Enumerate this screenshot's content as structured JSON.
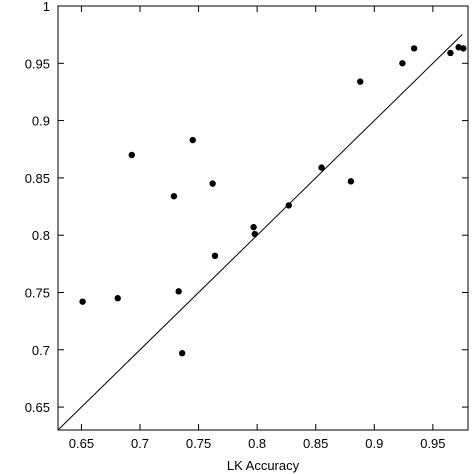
{
  "chart_data": {
    "type": "scatter",
    "title": "",
    "xlabel": "LK Accuracy",
    "ylabel": "",
    "xlim": [
      0.63,
      0.98
    ],
    "ylim": [
      0.63,
      1.0
    ],
    "x_ticks": [
      0.65,
      0.7,
      0.75,
      0.8,
      0.85,
      0.9,
      0.95
    ],
    "x_tick_labels": [
      "0.65",
      "0.7",
      "0.75",
      "0.8",
      "0.85",
      "0.9",
      "0.95"
    ],
    "y_ticks": [
      0.65,
      0.7,
      0.75,
      0.8,
      0.85,
      0.9,
      0.95,
      1.0
    ],
    "y_tick_labels": [
      "0.65",
      "0.7",
      "0.75",
      "0.8",
      "0.85",
      "0.9",
      "0.95",
      "1"
    ],
    "grid": false,
    "reference_line": {
      "from": [
        0.63,
        0.63
      ],
      "to": [
        0.975,
        0.975
      ]
    },
    "points": [
      {
        "x": 0.651,
        "y": 0.742
      },
      {
        "x": 0.681,
        "y": 0.745
      },
      {
        "x": 0.693,
        "y": 0.87
      },
      {
        "x": 0.729,
        "y": 0.834
      },
      {
        "x": 0.733,
        "y": 0.751
      },
      {
        "x": 0.736,
        "y": 0.697
      },
      {
        "x": 0.745,
        "y": 0.883
      },
      {
        "x": 0.762,
        "y": 0.845
      },
      {
        "x": 0.764,
        "y": 0.782
      },
      {
        "x": 0.797,
        "y": 0.807
      },
      {
        "x": 0.798,
        "y": 0.801
      },
      {
        "x": 0.827,
        "y": 0.826
      },
      {
        "x": 0.855,
        "y": 0.859
      },
      {
        "x": 0.88,
        "y": 0.847
      },
      {
        "x": 0.888,
        "y": 0.934
      },
      {
        "x": 0.924,
        "y": 0.95
      },
      {
        "x": 0.934,
        "y": 0.963
      },
      {
        "x": 0.965,
        "y": 0.959
      },
      {
        "x": 0.972,
        "y": 0.964
      },
      {
        "x": 0.976,
        "y": 0.963
      }
    ],
    "colors": {
      "points": "#000000",
      "line": "#000000",
      "axes": "#000000"
    }
  }
}
